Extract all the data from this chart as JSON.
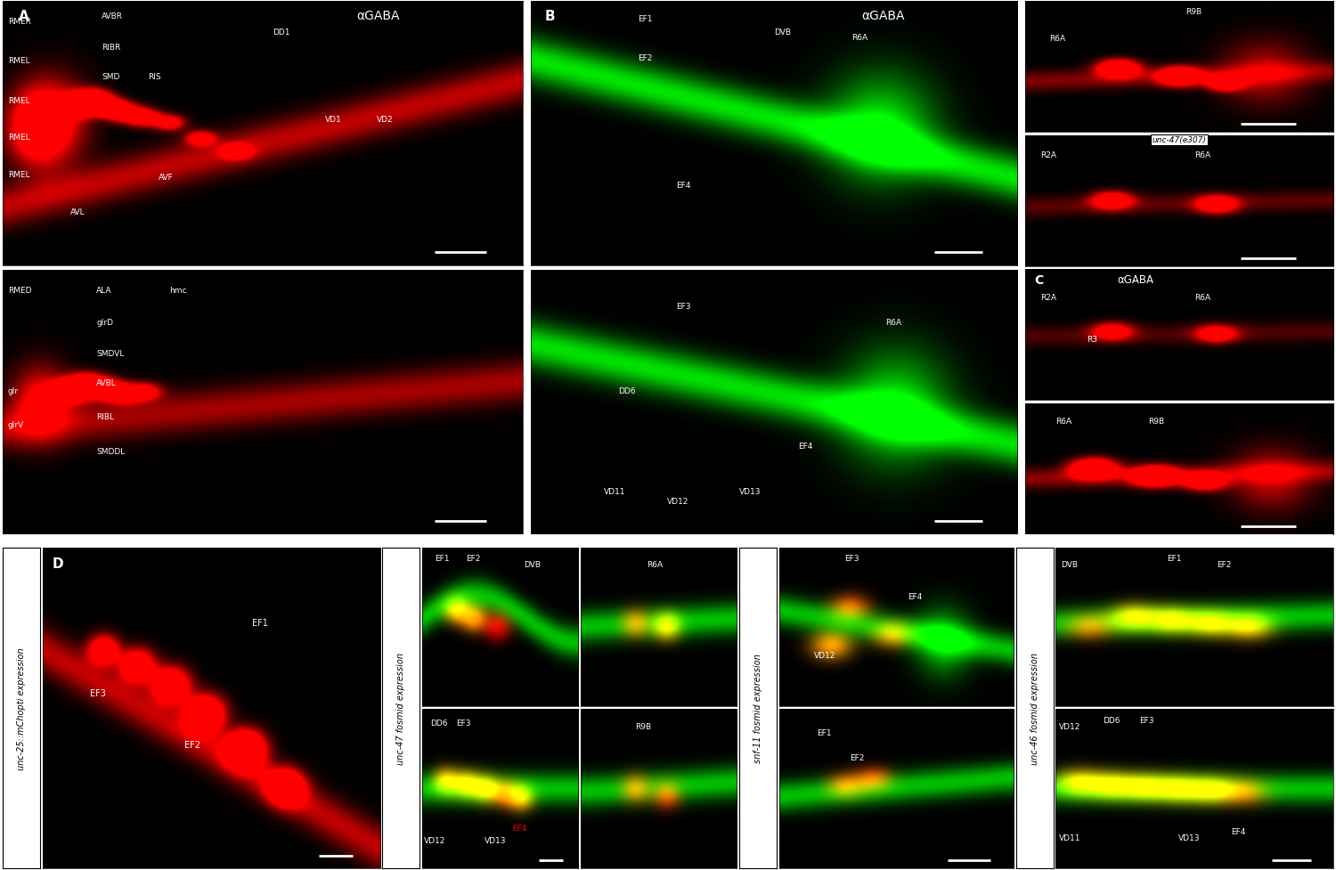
{
  "panel_A_title": "αGABA",
  "panel_B_title": "αGABA",
  "panel_C_title": "αGABA",
  "panel_C_box_label": "unc-47(e307)",
  "panel_D_side_label": "unc-25::mChopti expression",
  "panel_unc47_label": "unc-47 fosmid expression",
  "panel_snf11_label": "snf-11 fosmid expression",
  "panel_unc46_label": "unc-46 fosmid expression",
  "white_sep": "#ffffff"
}
